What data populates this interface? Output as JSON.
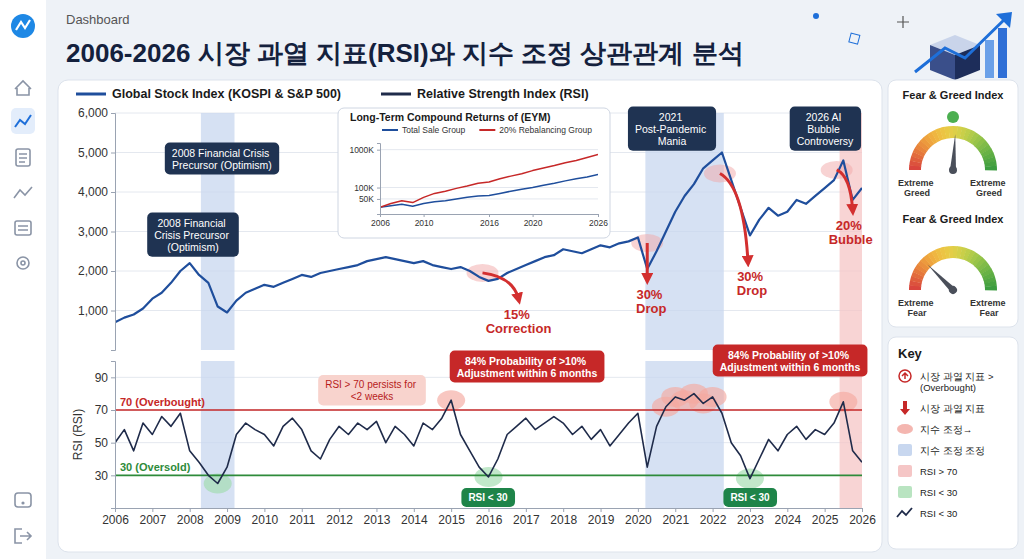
{
  "header": {
    "breadcrumb": "Dashboard",
    "title": "2006-2026 시장 과열 지표(RSI)와 지수 조정 상관관계 분석"
  },
  "chart_data": [
    {
      "type": "line",
      "legend": "top",
      "x": [
        2006,
        2006.25,
        2006.5,
        2006.75,
        2007,
        2007.25,
        2007.5,
        2007.75,
        2008,
        2008.25,
        2008.5,
        2008.75,
        2009,
        2009.25,
        2009.5,
        2009.75,
        2010,
        2010.25,
        2010.5,
        2010.75,
        2011,
        2011.25,
        2011.5,
        2011.75,
        2012,
        2012.25,
        2012.5,
        2012.75,
        2013,
        2013.25,
        2013.5,
        2013.75,
        2014,
        2014.25,
        2014.5,
        2014.75,
        2015,
        2015.25,
        2015.5,
        2015.75,
        2016,
        2016.25,
        2016.5,
        2016.75,
        2017,
        2017.25,
        2017.5,
        2017.75,
        2018,
        2018.25,
        2018.5,
        2018.75,
        2019,
        2019.25,
        2019.5,
        2019.75,
        2020,
        2020.25,
        2020.5,
        2020.75,
        2021,
        2021.25,
        2021.5,
        2021.75,
        2022,
        2022.25,
        2022.5,
        2022.75,
        2023,
        2023.25,
        2023.5,
        2023.75,
        2024,
        2024.25,
        2024.5,
        2024.75,
        2025,
        2025.25,
        2025.5,
        2025.75,
        2026
      ],
      "series": [
        {
          "name": "Global Stock Index (KOSPI & S&P 500)",
          "color": "#1f4e9c",
          "values": [
            700,
            820,
            900,
            1050,
            1300,
            1450,
            1700,
            2000,
            2200,
            1900,
            1700,
            1100,
            950,
            1250,
            1450,
            1550,
            1650,
            1600,
            1700,
            1800,
            1900,
            1850,
            1950,
            2000,
            2050,
            2100,
            2150,
            2250,
            2300,
            2350,
            2300,
            2250,
            2200,
            2250,
            2150,
            2100,
            2050,
            2100,
            2000,
            1850,
            1750,
            1800,
            1950,
            2050,
            2150,
            2250,
            2350,
            2400,
            2550,
            2500,
            2450,
            2550,
            2650,
            2600,
            2700,
            2750,
            2850,
            2050,
            2500,
            3000,
            3500,
            3900,
            4200,
            4600,
            4800,
            5000,
            4300,
            3600,
            2900,
            3300,
            3600,
            3400,
            3500,
            3800,
            3700,
            3900,
            4100,
            4300,
            4800,
            3800,
            4100
          ]
        }
      ],
      "xlim": [
        2006,
        2026
      ],
      "ylim": [
        0,
        6000
      ],
      "yticks": [
        {
          "value": 1000,
          "label": "1,000"
        },
        {
          "value": 2000,
          "label": "2,000"
        },
        {
          "value": 3000,
          "label": "3,000"
        },
        {
          "value": 4000,
          "label": "4,000"
        },
        {
          "value": 5000,
          "label": "5,000"
        },
        {
          "value": 6000,
          "label": "6,000"
        }
      ],
      "grid": true,
      "tick_labels": "y",
      "bands": [
        {
          "start": 2008.3,
          "end": 2009.2,
          "color": "#c8d7ef"
        },
        {
          "start": 2020.2,
          "end": 2022.3,
          "color": "#c8d7ef"
        },
        {
          "start": 2025.4,
          "end": 2026,
          "color": "#f5c6c6"
        }
      ],
      "event_labels": [
        "2008 Financial Crisis Precursor (Optimism)",
        "2008 Financial Crisis Precursor (Optimism)",
        "2021 Post-Pandemic Mania",
        "2026 AI Bubble Controversy"
      ],
      "drop_labels": [
        {
          "text": "15% Correction",
          "x": 2016
        },
        {
          "text": "30% Drop",
          "x": 2020.25
        },
        {
          "text": "30% Drop",
          "x": 2023
        },
        {
          "text": "20% Bubble",
          "x": 2025.75
        }
      ]
    },
    {
      "type": "line",
      "legend": "top",
      "x": [
        2006,
        2006.25,
        2006.5,
        2006.75,
        2007,
        2007.25,
        2007.5,
        2007.75,
        2008,
        2008.25,
        2008.5,
        2008.75,
        2009,
        2009.25,
        2009.5,
        2009.75,
        2010,
        2010.25,
        2010.5,
        2010.75,
        2011,
        2011.25,
        2011.5,
        2011.75,
        2012,
        2012.25,
        2012.5,
        2012.75,
        2013,
        2013.25,
        2013.5,
        2013.75,
        2014,
        2014.25,
        2014.5,
        2014.75,
        2015,
        2015.25,
        2015.5,
        2015.75,
        2016,
        2016.25,
        2016.5,
        2016.75,
        2017,
        2017.25,
        2017.5,
        2017.75,
        2018,
        2018.25,
        2018.5,
        2018.75,
        2019,
        2019.25,
        2019.5,
        2019.75,
        2020,
        2020.25,
        2020.5,
        2020.75,
        2021,
        2021.25,
        2021.5,
        2021.75,
        2022,
        2022.25,
        2022.5,
        2022.75,
        2023,
        2023.25,
        2023.5,
        2023.75,
        2024,
        2024.25,
        2024.5,
        2024.75,
        2025,
        2025.25,
        2025.5,
        2025.75,
        2026
      ],
      "series": [
        {
          "name": "Relative Strength Index (RSI)",
          "color": "#1f2b4a",
          "values": [
            50,
            58,
            45,
            62,
            55,
            66,
            60,
            68,
            45,
            38,
            30,
            25,
            35,
            55,
            62,
            58,
            55,
            48,
            60,
            65,
            58,
            45,
            40,
            52,
            60,
            55,
            62,
            58,
            63,
            50,
            60,
            55,
            48,
            62,
            58,
            65,
            76,
            55,
            45,
            35,
            29,
            40,
            55,
            60,
            65,
            58,
            62,
            66,
            62,
            55,
            60,
            52,
            58,
            48,
            55,
            62,
            68,
            35,
            60,
            72,
            78,
            76,
            80,
            74,
            78,
            68,
            50,
            42,
            28,
            40,
            52,
            45,
            55,
            60,
            52,
            58,
            55,
            62,
            75,
            45,
            38
          ]
        }
      ],
      "xlim": [
        2006,
        2026
      ],
      "ylim": [
        10,
        100
      ],
      "xticks": [
        2006,
        2007,
        2008,
        2009,
        2010,
        2011,
        2012,
        2013,
        2014,
        2015,
        2016,
        2017,
        2018,
        2019,
        2020,
        2021,
        2022,
        2023,
        2024,
        2025,
        2026
      ],
      "yticks": [
        30,
        50,
        70,
        90
      ],
      "ylabel": "RSI (RSI)",
      "grid": true,
      "reference_lines": [
        {
          "value": 70,
          "label": "70 (Overbought)",
          "color": "#c62828"
        },
        {
          "value": 30,
          "label": "30 (Oversold)",
          "color": "#2e8b3a"
        }
      ],
      "notes": [
        "RSI > 70 persists for <2 weeks"
      ],
      "probability_labels": [
        "84% Probability of >10% Adjustment within 6 months",
        "84% Probability of >10% Adjustment within 6 months"
      ],
      "oversold_labels": [
        "RSI < 30",
        "RSI < 30"
      ]
    },
    {
      "type": "line",
      "title": "Long-Term Compound Returns of (EYM)",
      "legend": "top",
      "log": "y",
      "x": [
        2006,
        2007,
        2008,
        2009,
        2010,
        2011,
        2012,
        2013,
        2014,
        2015,
        2016,
        2017,
        2018,
        2019,
        2020,
        2021,
        2022,
        2023,
        2024,
        2025,
        2026
      ],
      "series": [
        {
          "name": "Total Sale Group",
          "color": "#1f4e9c",
          "values": [
            30000,
            33000,
            36000,
            32000,
            38000,
            42000,
            45000,
            50000,
            55000,
            60000,
            62000,
            70000,
            80000,
            90000,
            100000,
            115000,
            130000,
            150000,
            170000,
            190000,
            220000
          ]
        },
        {
          "name": "20% Rebalancing Group",
          "color": "#c62828",
          "values": [
            30000,
            38000,
            45000,
            40000,
            55000,
            70000,
            80000,
            95000,
            110000,
            130000,
            140000,
            170000,
            200000,
            230000,
            280000,
            330000,
            380000,
            450000,
            520000,
            620000,
            750000
          ]
        }
      ],
      "xlim": [
        2006,
        2026
      ],
      "ylim": [
        20000,
        1500000
      ],
      "xticks": [
        2006,
        2010,
        2016,
        2020,
        2026
      ],
      "yticks": [
        {
          "value": 50000,
          "label": "50K"
        },
        {
          "value": 100000,
          "label": "100K"
        },
        {
          "value": 1000000,
          "label": "1000K"
        }
      ],
      "grid": true
    }
  ],
  "gauges": [
    {
      "title": "Fear & Greed Index",
      "value": 52,
      "range": [
        0,
        100
      ],
      "labels": [
        "Extreme Greed",
        "Extreme Greed"
      ]
    },
    {
      "title": "Fear & Greed Index",
      "value": 25,
      "range": [
        0,
        100
      ],
      "labels": [
        "Extreme Fear",
        "Extreme Fear"
      ]
    }
  ],
  "key": {
    "title": "Key",
    "items": [
      "시장 과열 지표 > (Overbought)",
      "시장 과열 지표",
      "지수 조정→",
      "지수 조정 조정",
      "RSI > 70",
      "RSI < 30",
      "RSI < 30"
    ]
  }
}
